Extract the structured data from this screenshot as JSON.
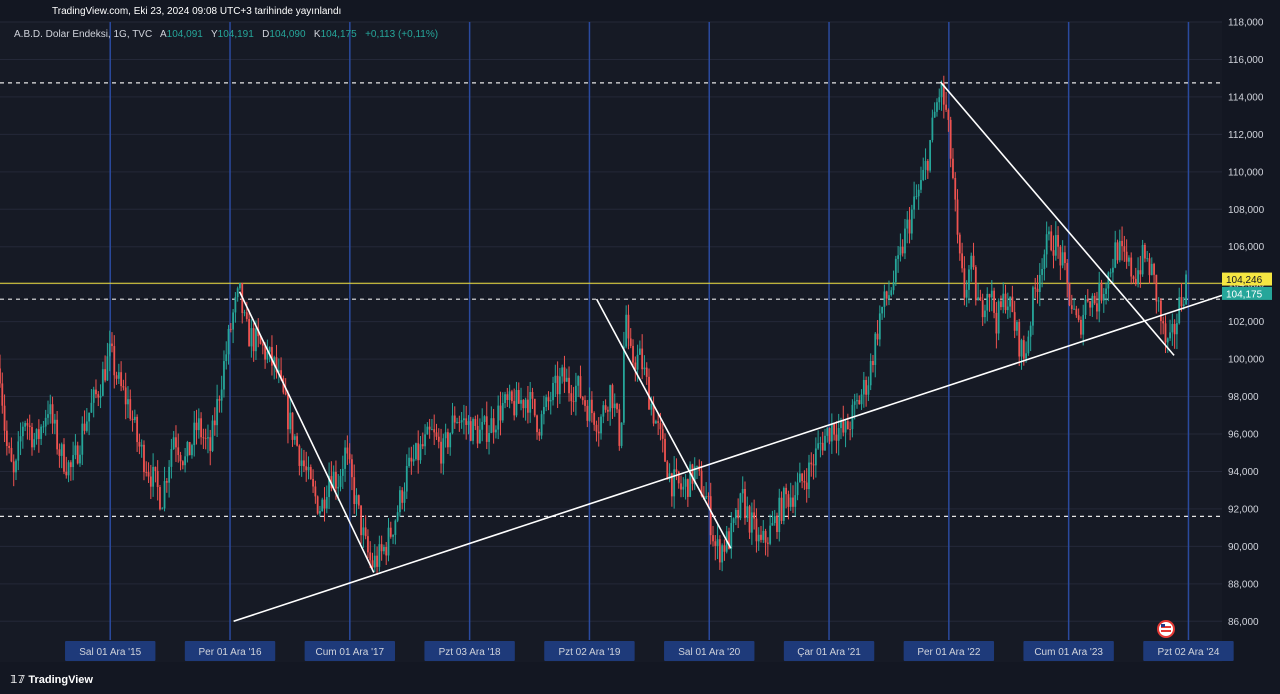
{
  "header": {
    "published": "TradingView.com, Eki 23, 2024 09:08 UTC+3 tarihinde yayınlandı"
  },
  "legend": {
    "symbol": "A.B.D. Dolar Endeksi, 1G, TVC",
    "open_label": "A",
    "open": "104,091",
    "high_label": "Y",
    "high": "104,191",
    "low_label": "D",
    "low": "104,090",
    "close_label": "K",
    "close": "104,175",
    "change": "+0,113 (+0,11%)"
  },
  "footer": {
    "logo": "TradingView"
  },
  "colors": {
    "background": "#161a25",
    "up": "#26a69a",
    "down": "#ef5350",
    "year_line": "#2a4a9e",
    "price_line": "#f0e040",
    "last_price_bg": "#26a69a",
    "alert_price_bg": "#f5e642"
  },
  "chart_data": {
    "type": "candlestick",
    "symbol": "A.B.D. Dolar Endeksi",
    "timeframe": "1G",
    "ylim": [
      85,
      118
    ],
    "xlim": [
      2015.0,
      2025.2
    ],
    "y_ticks": [
      "86,000",
      "88,000",
      "90,000",
      "92,000",
      "94,000",
      "96,000",
      "98,000",
      "100,000",
      "102,000",
      "104,000",
      "106,000",
      "108,000",
      "110,000",
      "112,000",
      "114,000",
      "116,000",
      "118,000"
    ],
    "x_ticks": [
      {
        "label": "Sal 01 Ara '15",
        "x": 2015.92
      },
      {
        "label": "Per 01 Ara '16",
        "x": 2016.92
      },
      {
        "label": "Cum 01 Ara '17",
        "x": 2017.92
      },
      {
        "label": "Pzt 03 Ara '18",
        "x": 2018.92
      },
      {
        "label": "Pzt 02 Ara '19",
        "x": 2019.92
      },
      {
        "label": "Sal 01 Ara '20",
        "x": 2020.92
      },
      {
        "label": "Çar 01 Ara '21",
        "x": 2021.92
      },
      {
        "label": "Per 01 Ara '22",
        "x": 2022.92
      },
      {
        "label": "Cum 01 Ara '23",
        "x": 2023.92
      },
      {
        "label": "Pzt 02 Ara '24",
        "x": 2024.92
      }
    ],
    "last_price": "104,175",
    "alert_price": "104,246",
    "path": [
      [
        2015.0,
        99.5
      ],
      [
        2015.05,
        95.5
      ],
      [
        2015.12,
        93.5
      ],
      [
        2015.2,
        97.0
      ],
      [
        2015.3,
        95.5
      ],
      [
        2015.4,
        97.5
      ],
      [
        2015.5,
        95.0
      ],
      [
        2015.6,
        94.0
      ],
      [
        2015.7,
        96.5
      ],
      [
        2015.8,
        98.0
      ],
      [
        2015.92,
        100.3
      ],
      [
        2016.0,
        98.5
      ],
      [
        2016.08,
        97.5
      ],
      [
        2016.15,
        95.5
      ],
      [
        2016.25,
        94.0
      ],
      [
        2016.35,
        92.5
      ],
      [
        2016.45,
        96.0
      ],
      [
        2016.55,
        94.5
      ],
      [
        2016.65,
        96.5
      ],
      [
        2016.75,
        95.0
      ],
      [
        2016.85,
        99.0
      ],
      [
        2016.95,
        102.5
      ],
      [
        2017.0,
        103.5
      ],
      [
        2017.05,
        101.5
      ],
      [
        2017.12,
        101.0
      ],
      [
        2017.2,
        100.5
      ],
      [
        2017.3,
        99.5
      ],
      [
        2017.4,
        97.0
      ],
      [
        2017.5,
        95.0
      ],
      [
        2017.6,
        93.0
      ],
      [
        2017.68,
        92.0
      ],
      [
        2017.75,
        94.0
      ],
      [
        2017.82,
        93.5
      ],
      [
        2017.88,
        95.0
      ],
      [
        2017.95,
        93.0
      ],
      [
        2018.05,
        90.0
      ],
      [
        2018.1,
        89.0
      ],
      [
        2018.18,
        89.5
      ],
      [
        2018.25,
        90.5
      ],
      [
        2018.32,
        92.0
      ],
      [
        2018.4,
        94.0
      ],
      [
        2018.5,
        95.0
      ],
      [
        2018.6,
        96.0
      ],
      [
        2018.7,
        95.0
      ],
      [
        2018.8,
        97.0
      ],
      [
        2018.9,
        96.5
      ],
      [
        2019.0,
        96.0
      ],
      [
        2019.1,
        96.5
      ],
      [
        2019.2,
        97.5
      ],
      [
        2019.3,
        97.5
      ],
      [
        2019.4,
        98.0
      ],
      [
        2019.5,
        96.5
      ],
      [
        2019.6,
        98.0
      ],
      [
        2019.7,
        99.0
      ],
      [
        2019.75,
        98.5
      ],
      [
        2019.82,
        98.5
      ],
      [
        2019.9,
        97.5
      ],
      [
        2019.97,
        97.0
      ],
      [
        2020.0,
        96.5
      ],
      [
        2020.1,
        98.5
      ],
      [
        2020.18,
        95.5
      ],
      [
        2020.22,
        103.0
      ],
      [
        2020.25,
        100.0
      ],
      [
        2020.35,
        100.0
      ],
      [
        2020.42,
        98.0
      ],
      [
        2020.5,
        96.0
      ],
      [
        2020.6,
        93.5
      ],
      [
        2020.7,
        93.0
      ],
      [
        2020.8,
        94.0
      ],
      [
        2020.9,
        92.5
      ],
      [
        2020.97,
        90.0
      ],
      [
        2021.0,
        89.8
      ],
      [
        2021.1,
        90.5
      ],
      [
        2021.2,
        92.5
      ],
      [
        2021.25,
        91.5
      ],
      [
        2021.35,
        90.0
      ],
      [
        2021.45,
        91.0
      ],
      [
        2021.55,
        92.5
      ],
      [
        2021.65,
        93.0
      ],
      [
        2021.75,
        94.0
      ],
      [
        2021.85,
        95.5
      ],
      [
        2021.95,
        96.5
      ],
      [
        2022.05,
        96.0
      ],
      [
        2022.15,
        97.5
      ],
      [
        2022.25,
        99.0
      ],
      [
        2022.35,
        102.5
      ],
      [
        2022.42,
        103.5
      ],
      [
        2022.5,
        105.0
      ],
      [
        2022.55,
        106.5
      ],
      [
        2022.62,
        108.0
      ],
      [
        2022.7,
        109.5
      ],
      [
        2022.75,
        111.0
      ],
      [
        2022.8,
        113.0
      ],
      [
        2022.85,
        114.5
      ],
      [
        2022.9,
        113.0
      ],
      [
        2022.95,
        110.0
      ],
      [
        2023.0,
        105.5
      ],
      [
        2023.05,
        103.5
      ],
      [
        2023.1,
        105.0
      ],
      [
        2023.18,
        102.5
      ],
      [
        2023.25,
        104.0
      ],
      [
        2023.32,
        102.0
      ],
      [
        2023.4,
        103.5
      ],
      [
        2023.48,
        101.5
      ],
      [
        2023.55,
        100.0
      ],
      [
        2023.62,
        103.0
      ],
      [
        2023.7,
        105.5
      ],
      [
        2023.78,
        106.5
      ],
      [
        2023.85,
        105.5
      ],
      [
        2023.92,
        103.5
      ],
      [
        2024.0,
        101.5
      ],
      [
        2024.08,
        103.5
      ],
      [
        2024.15,
        103.0
      ],
      [
        2024.25,
        104.5
      ],
      [
        2024.32,
        106.0
      ],
      [
        2024.4,
        105.0
      ],
      [
        2024.48,
        104.5
      ],
      [
        2024.55,
        105.5
      ],
      [
        2024.62,
        104.5
      ],
      [
        2024.68,
        102.5
      ],
      [
        2024.72,
        101.0
      ],
      [
        2024.76,
        100.5
      ],
      [
        2024.8,
        101.5
      ],
      [
        2024.85,
        103.0
      ],
      [
        2024.9,
        104.17
      ]
    ],
    "horizontal_lines": [
      {
        "y": 114.75,
        "style": "dashed"
      },
      {
        "y": 103.2,
        "style": "dashed"
      },
      {
        "y": 91.6,
        "style": "dashed"
      },
      {
        "y": 104.05,
        "style": "solid-yellow"
      }
    ],
    "trend_lines": [
      {
        "x1": 2016.95,
        "y1": 86.0,
        "x2": 2025.2,
        "y2": 103.4
      },
      {
        "x1": 2017.0,
        "y1": 103.6,
        "x2": 2018.12,
        "y2": 88.6
      },
      {
        "x1": 2019.98,
        "y1": 103.2,
        "x2": 2021.1,
        "y2": 89.9
      },
      {
        "x1": 2022.85,
        "y1": 114.8,
        "x2": 2024.8,
        "y2": 100.2
      }
    ]
  }
}
